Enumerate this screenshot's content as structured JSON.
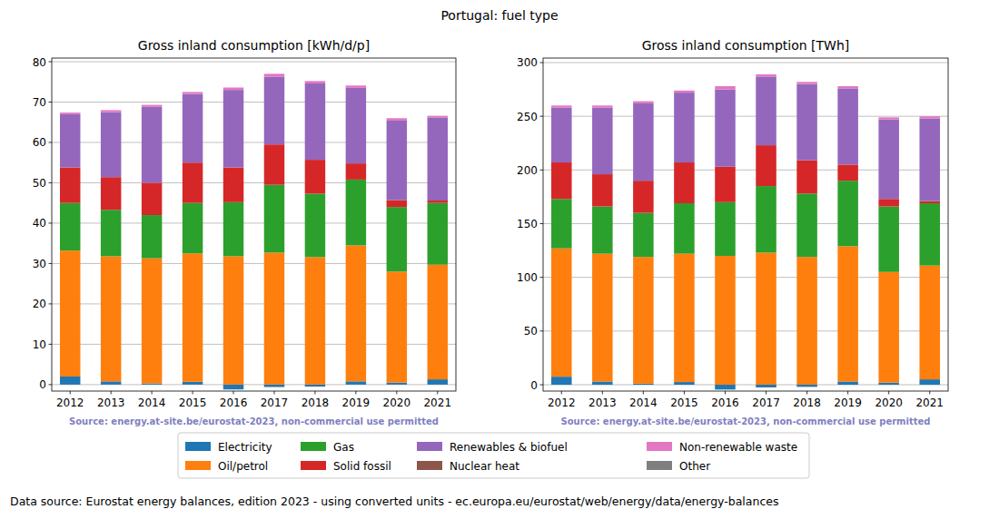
{
  "title": "Portugal: fuel type",
  "footer": "Data source: Eurostat energy balances, edition 2023 - using converted units - ec.europa.eu/eurostat/web/energy/data/energy-balances",
  "chart_data": [
    {
      "type": "bar",
      "stacked": true,
      "grid": true,
      "legend": "bottom",
      "title": "Gross inland consumption [kWh/d/p]",
      "annotations": [
        "Source: energy.at-site.be/eurostat-2023, non-commercial use permitted"
      ],
      "categories": [
        "2012",
        "2013",
        "2014",
        "2015",
        "2016",
        "2017",
        "2018",
        "2019",
        "2020",
        "2021"
      ],
      "ylim": [
        -1.6,
        80.9
      ],
      "yticks": [
        0,
        10,
        20,
        30,
        40,
        50,
        60,
        70,
        80
      ],
      "series": [
        {
          "name": "Electricity",
          "color": "#1f77b4",
          "values": [
            2.0,
            0.8,
            0.3,
            0.7,
            -1.2,
            -0.6,
            -0.5,
            0.8,
            0.5,
            1.3
          ]
        },
        {
          "name": "Oil/petrol",
          "color": "#ff7f0e",
          "values": [
            31.2,
            31.0,
            31.0,
            31.8,
            31.8,
            32.7,
            31.6,
            33.7,
            27.5,
            28.4
          ]
        },
        {
          "name": "Gas",
          "color": "#2ca02c",
          "values": [
            11.8,
            11.5,
            10.7,
            12.5,
            13.4,
            16.8,
            15.7,
            16.3,
            16.0,
            15.3
          ]
        },
        {
          "name": "Solid fossil",
          "color": "#d62728",
          "values": [
            8.8,
            8.1,
            8.0,
            10.0,
            8.6,
            10.0,
            8.4,
            4.0,
            1.7,
            0.6
          ]
        },
        {
          "name": "Renewables & biofuel",
          "color": "#9467bd",
          "values": [
            13.2,
            16.1,
            18.8,
            17.0,
            19.2,
            16.8,
            18.9,
            18.7,
            19.7,
            20.6
          ]
        },
        {
          "name": "Nuclear heat",
          "color": "#8c564b",
          "values": [
            0,
            0,
            0,
            0,
            0,
            0,
            0,
            0,
            0,
            0
          ]
        },
        {
          "name": "Non-renewable waste",
          "color": "#e377c2",
          "values": [
            0.4,
            0.5,
            0.5,
            0.5,
            0.6,
            0.7,
            0.6,
            0.6,
            0.6,
            0.4
          ]
        },
        {
          "name": "Other",
          "color": "#7f7f7f",
          "values": [
            0,
            0,
            0,
            0,
            0,
            0,
            0,
            0,
            0,
            0
          ]
        }
      ]
    },
    {
      "type": "bar",
      "stacked": true,
      "grid": true,
      "legend": "bottom",
      "title": "Gross inland consumption [TWh]",
      "annotations": [
        "Source: energy.at-site.be/eurostat-2023, non-commercial use permitted"
      ],
      "categories": [
        "2012",
        "2013",
        "2014",
        "2015",
        "2016",
        "2017",
        "2018",
        "2019",
        "2020",
        "2021"
      ],
      "ylim": [
        -5.9,
        304.2
      ],
      "yticks": [
        0,
        50,
        100,
        150,
        200,
        250,
        300
      ],
      "series": [
        {
          "name": "Electricity",
          "color": "#1f77b4",
          "values": [
            7.5,
            3,
            1,
            2.5,
            -4.5,
            -2.5,
            -2,
            3,
            2,
            5
          ]
        },
        {
          "name": "Oil/petrol",
          "color": "#ff7f0e",
          "values": [
            119.5,
            119,
            118,
            119.5,
            120,
            123,
            119,
            126,
            103,
            106
          ]
        },
        {
          "name": "Gas",
          "color": "#2ca02c",
          "values": [
            46,
            44,
            41,
            47,
            50,
            62,
            59,
            61,
            61,
            58
          ]
        },
        {
          "name": "Solid fossil",
          "color": "#d62728",
          "values": [
            34,
            30,
            30,
            38,
            33,
            38,
            31,
            15,
            7,
            2
          ]
        },
        {
          "name": "Renewables & biofuel",
          "color": "#9467bd",
          "values": [
            51,
            62,
            72,
            65,
            72,
            64,
            71,
            71,
            74,
            77
          ]
        },
        {
          "name": "Nuclear heat",
          "color": "#8c564b",
          "values": [
            0,
            0,
            0,
            0,
            0,
            0,
            0,
            0,
            0,
            0
          ]
        },
        {
          "name": "Non-renewable waste",
          "color": "#e377c2",
          "values": [
            2,
            2,
            2,
            2,
            3,
            2,
            2,
            2,
            2,
            2
          ]
        },
        {
          "name": "Other",
          "color": "#7f7f7f",
          "values": [
            0,
            0,
            0,
            0,
            0,
            0,
            0,
            0,
            0,
            0
          ]
        }
      ]
    }
  ]
}
